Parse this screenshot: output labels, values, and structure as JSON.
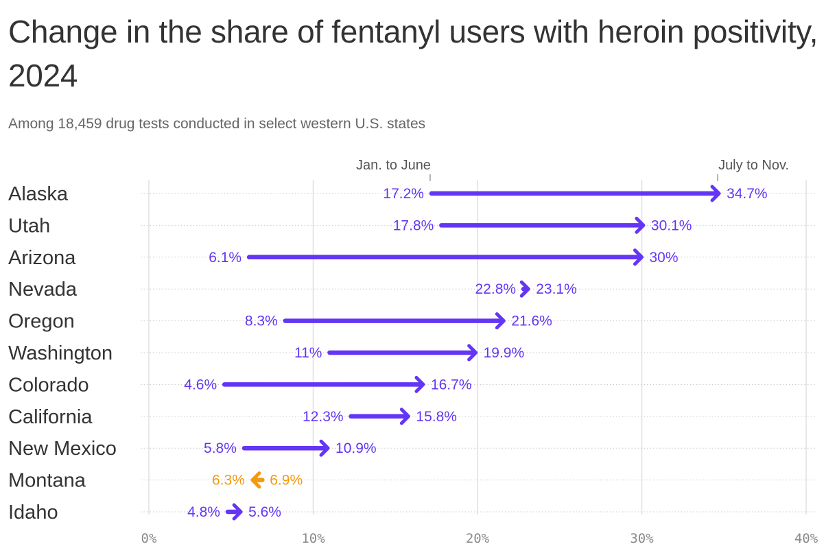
{
  "chart_data": {
    "type": "arrow-dumbbell",
    "title": "Change in the share of fentanyl users with heroin positivity, 2024",
    "subtitle": "Among 18,459 drug tests conducted in select western U.S. states",
    "period_start_label": "Jan. to June",
    "period_end_label": "July to Nov.",
    "xlim": [
      0,
      40
    ],
    "ticks": [
      0,
      10,
      20,
      30,
      40
    ],
    "tick_labels": [
      "0%",
      "10%",
      "20%",
      "30%",
      "40%"
    ],
    "categories": [
      "Alaska",
      "Utah",
      "Arizona",
      "Nevada",
      "Oregon",
      "Washington",
      "Colorado",
      "California",
      "New Mexico",
      "Montana",
      "Idaho"
    ],
    "series": [
      {
        "name": "Jan. to June",
        "values": [
          17.2,
          17.8,
          6.1,
          22.8,
          8.3,
          11,
          4.6,
          12.3,
          5.8,
          6.9,
          4.8
        ],
        "labels": [
          "17.2%",
          "17.8%",
          "6.1%",
          "22.8%",
          "8.3%",
          "11%",
          "4.6%",
          "12.3%",
          "5.8%",
          "6.9%",
          "4.8%"
        ]
      },
      {
        "name": "July to Nov.",
        "values": [
          34.7,
          30.1,
          30,
          23.1,
          21.6,
          19.9,
          16.7,
          15.8,
          10.9,
          6.3,
          5.6
        ],
        "labels": [
          "34.7%",
          "30.1%",
          "30%",
          "23.1%",
          "21.6%",
          "19.9%",
          "16.7%",
          "15.8%",
          "10.9%",
          "6.3%",
          "5.6%"
        ]
      }
    ],
    "colors": {
      "increase": "#6336f5",
      "decrease": "#f29a0d",
      "grid": "#e0e0e0",
      "row_line": "#c8c8c8"
    }
  }
}
